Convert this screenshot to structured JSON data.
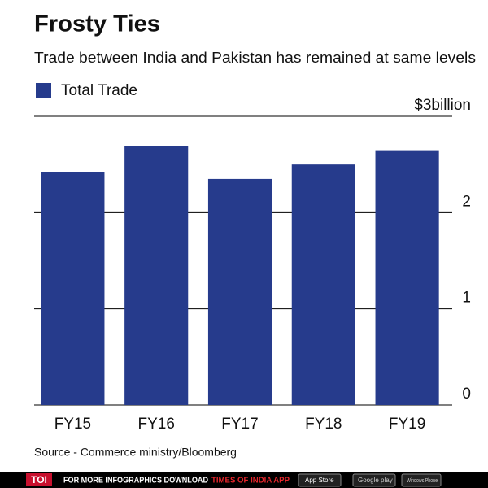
{
  "chart_data": {
    "type": "bar",
    "title": "Frosty Ties",
    "subtitle": "Trade between India and Pakistan has remained at same levels",
    "categories": [
      "FY15",
      "FY16",
      "FY17",
      "FY18",
      "FY19"
    ],
    "series": [
      {
        "name": "Total Trade",
        "color": "#263b8c",
        "values": [
          2.42,
          2.69,
          2.35,
          2.5,
          2.64
        ]
      }
    ],
    "ylim": [
      0,
      3
    ],
    "yticks": [
      0,
      1,
      2,
      {
        "value": 3,
        "label": "$3billion"
      }
    ],
    "grid": true,
    "legend": "top-left",
    "source": "Source - Commerce ministry/Bloomberg"
  },
  "footer": {
    "logo": "TOI",
    "text": "FOR MORE  INFOGRAPHICS DOWNLOAD",
    "app": "TIMES OF INDIA  APP",
    "badges": [
      "App Store",
      "Google play",
      "Windows Phone"
    ]
  }
}
